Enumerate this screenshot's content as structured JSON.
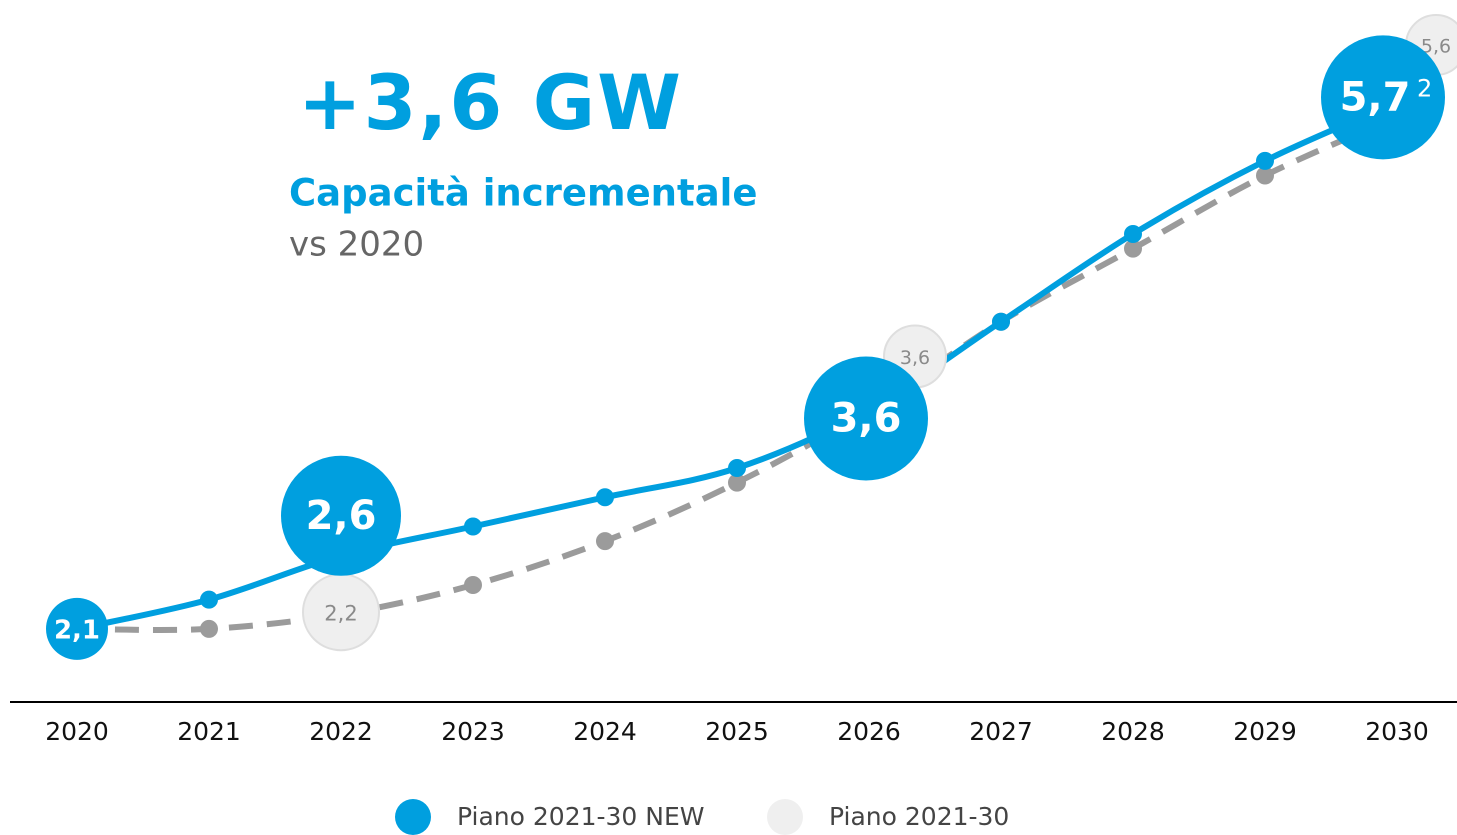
{
  "chart_data": {
    "type": "line",
    "title": "+3,6 GW",
    "subtitle": "Capacità incrementale",
    "note": "vs 2020",
    "footnote_marker": "2",
    "categories": [
      "2020",
      "2021",
      "2022",
      "2023",
      "2024",
      "2025",
      "2026",
      "2027",
      "2028",
      "2029",
      "2030"
    ],
    "ylim": [
      1.6,
      6.4
    ],
    "series": [
      {
        "name": "Piano 2021-30 NEW",
        "color": "#009fdf",
        "style": "solid",
        "values": [
          2.1,
          2.3,
          2.6,
          2.8,
          3.0,
          3.2,
          3.6,
          4.2,
          4.8,
          5.3,
          5.7
        ],
        "value_labels": [
          "2,1",
          null,
          "2,6",
          null,
          null,
          null,
          "3,6",
          null,
          null,
          null,
          "5,7"
        ]
      },
      {
        "name": "Piano 2021-30",
        "color": "#9b9b9b",
        "style": "dashed",
        "values": [
          2.1,
          2.1,
          2.2,
          2.4,
          2.7,
          3.1,
          3.6,
          4.2,
          4.7,
          5.2,
          5.6
        ],
        "value_labels": [
          null,
          null,
          "2,2",
          null,
          null,
          null,
          "3,6",
          null,
          null,
          null,
          "5,6"
        ]
      }
    ],
    "legend": "bottom"
  }
}
